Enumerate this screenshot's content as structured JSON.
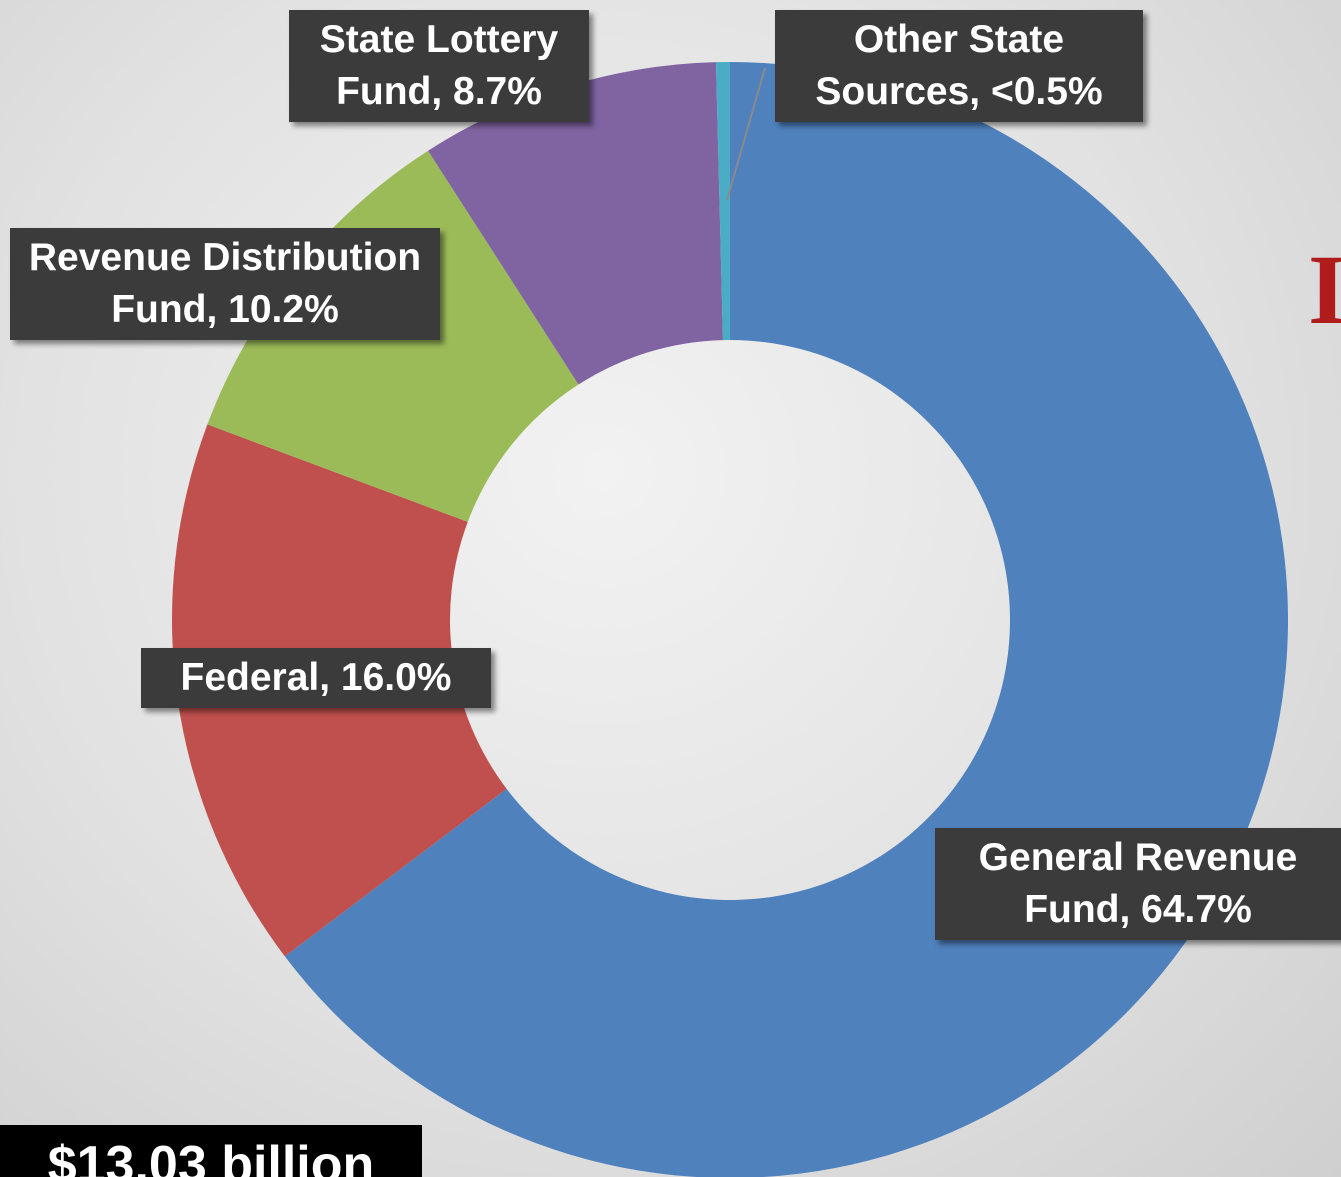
{
  "chart_data": {
    "type": "donut",
    "values": [
      64.7,
      16.0,
      10.2,
      8.7,
      0.4
    ],
    "value_labels": [
      "General Revenue Fund, 64.7%",
      "Federal, 16.0%",
      "Revenue Distribution Fund, 10.2%",
      "State Lottery Fund, 8.7%",
      "Other State Sources, <0.5%"
    ],
    "colors": [
      "#4f81bd",
      "#c0504d",
      "#9bbb59",
      "#8064a2",
      "#4bacc6"
    ],
    "total_label": "$13.03 billion",
    "title_fragment": "I"
  }
}
